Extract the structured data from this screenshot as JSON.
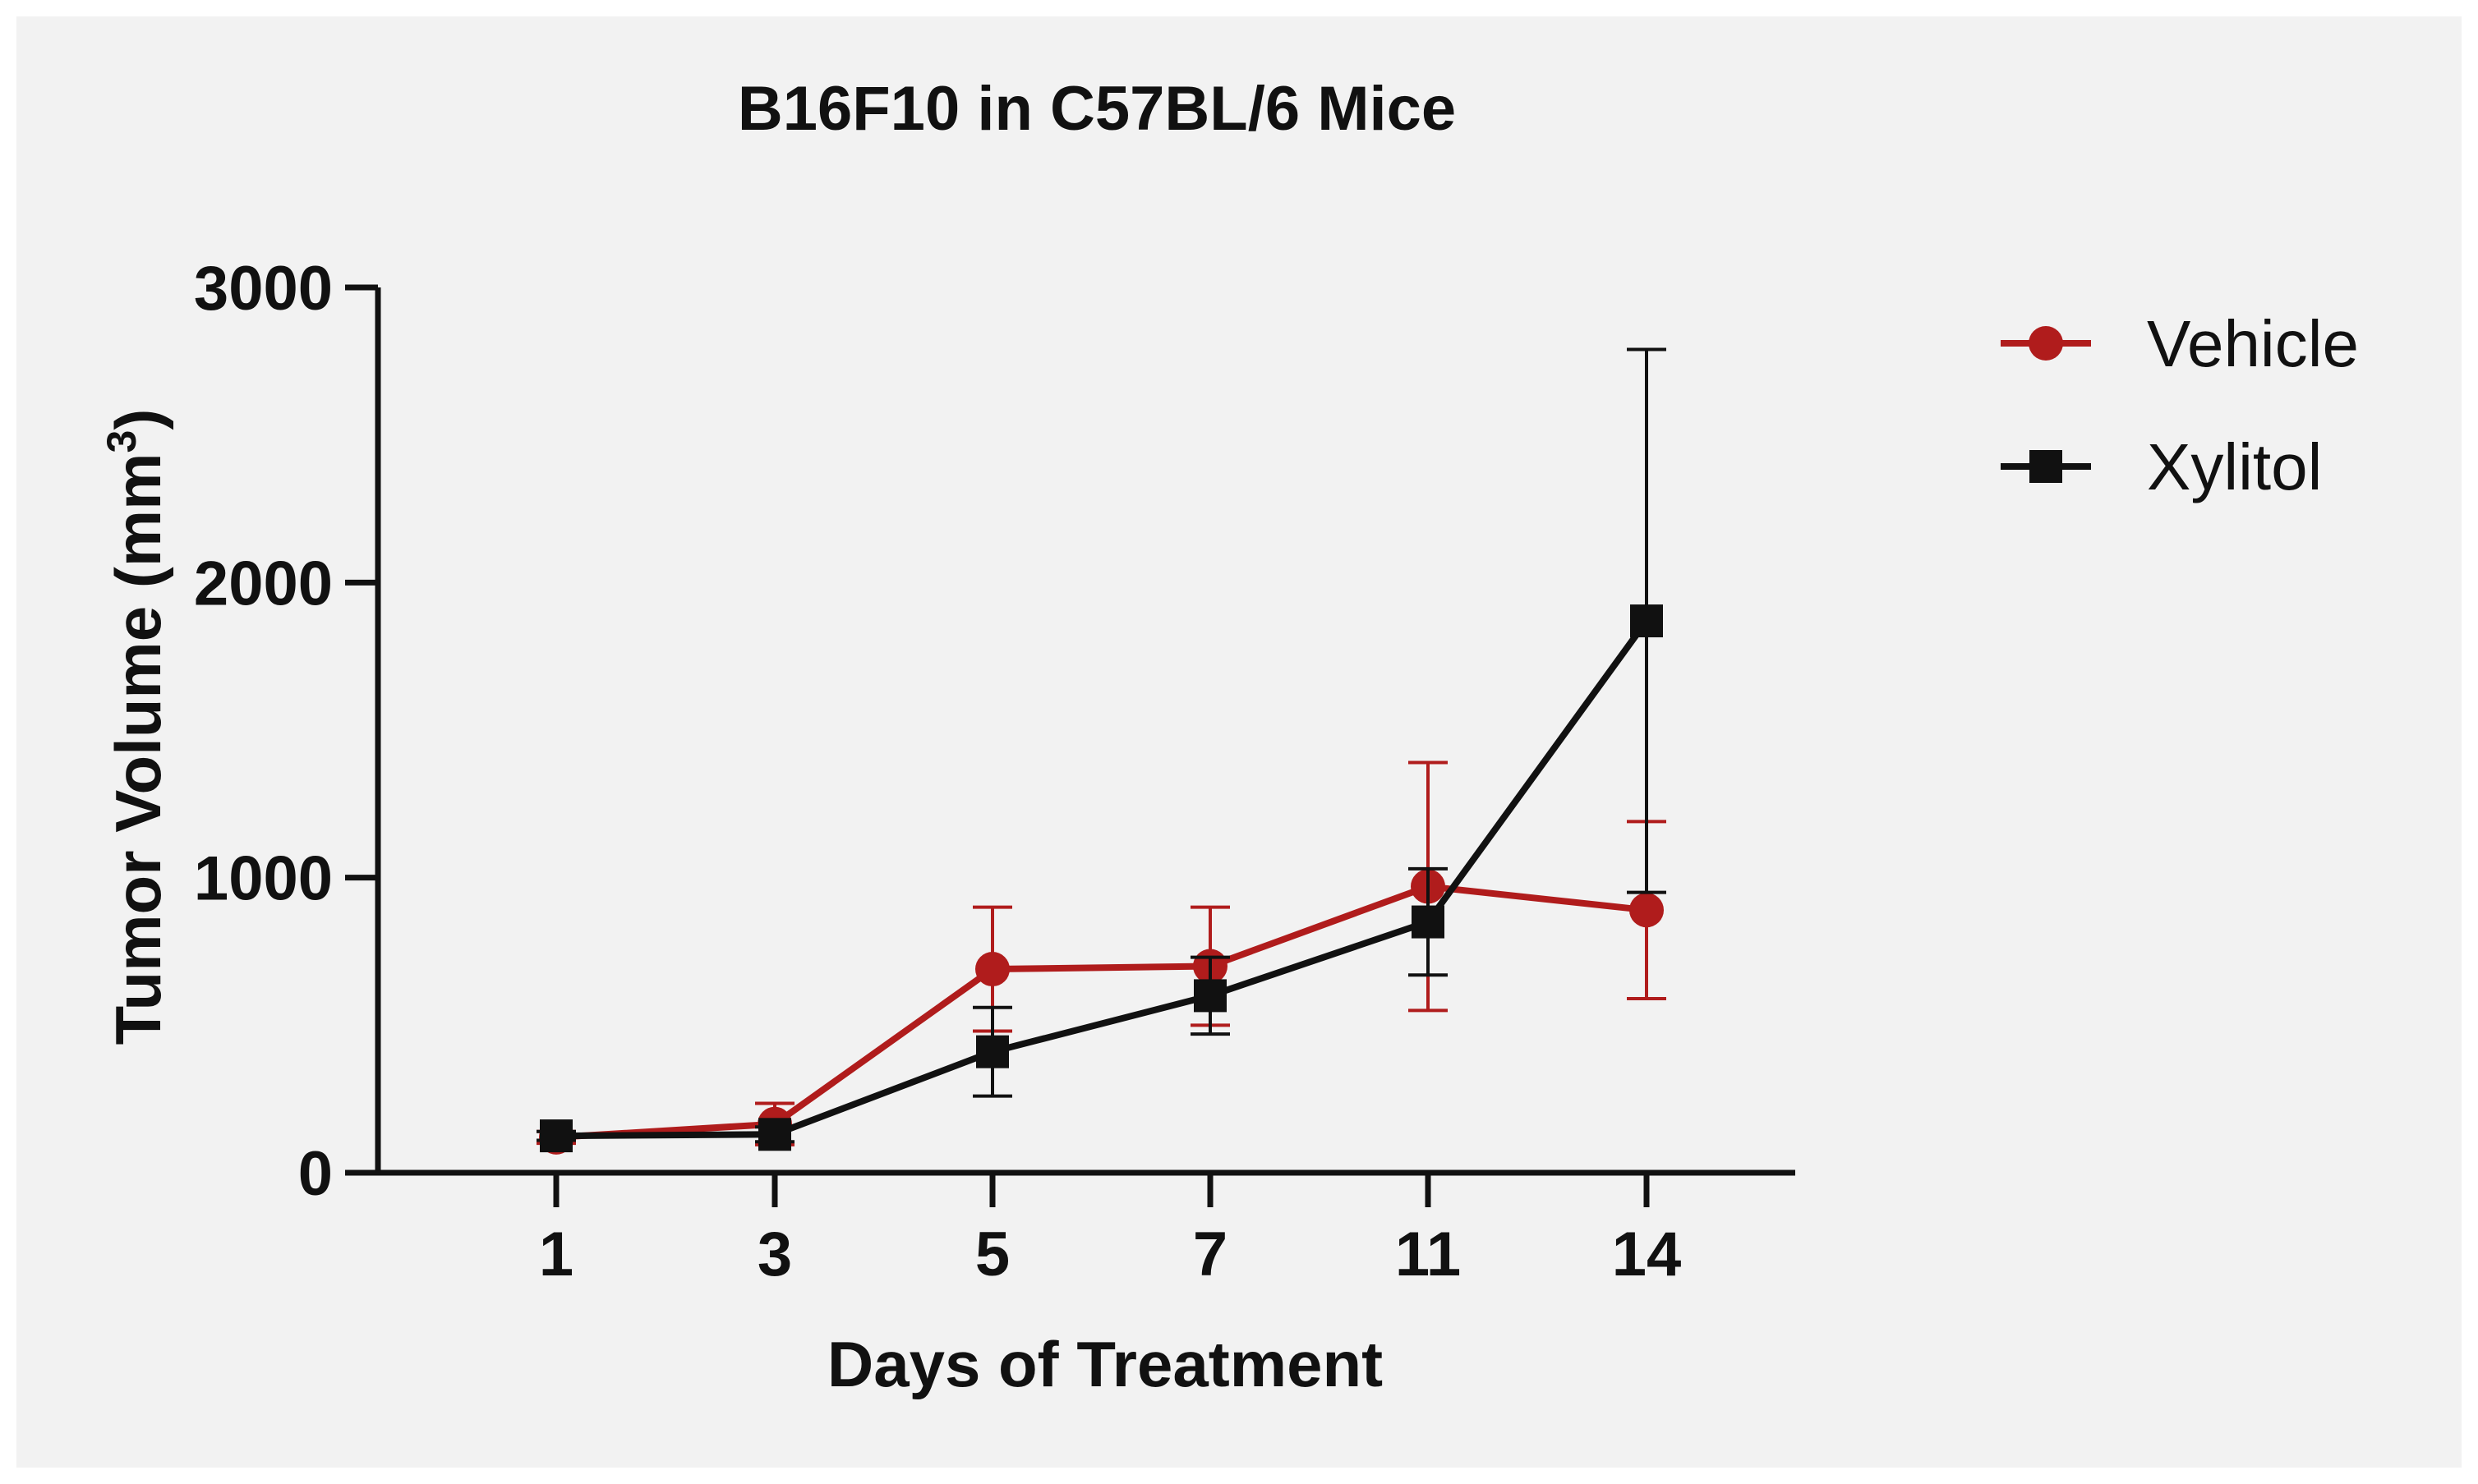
{
  "chart_data": {
    "type": "line",
    "title": "B16F10 in C57BL/6 Mice",
    "xlabel": "Days of Treatment",
    "ylabel": "Tumor Volume (mm",
    "ylabel_superscript": "3",
    "ylabel_close": ")",
    "categories": [
      "1",
      "3",
      "5",
      "7",
      "11",
      "14"
    ],
    "ylim": [
      0,
      3000
    ],
    "yticks": [
      0,
      1000,
      2000,
      3000
    ],
    "ytick_labels": [
      "0",
      "1000",
      "2000",
      "3000"
    ],
    "grid": false,
    "legend_position": "top-right",
    "series": [
      {
        "name": "Vehicle",
        "color": "#b01c1c",
        "marker": "circle",
        "values": [
          120,
          165,
          690,
          700,
          970,
          890
        ],
        "error": [
          20,
          70,
          210,
          200,
          420,
          300
        ]
      },
      {
        "name": "Xylitol",
        "color": "#111111",
        "marker": "square",
        "values": [
          125,
          130,
          410,
          600,
          850,
          1870
        ],
        "error": [
          15,
          25,
          150,
          130,
          180,
          920
        ]
      }
    ]
  },
  "colors": {
    "panel_background": "#f2f2f2",
    "axis": "#111111"
  }
}
